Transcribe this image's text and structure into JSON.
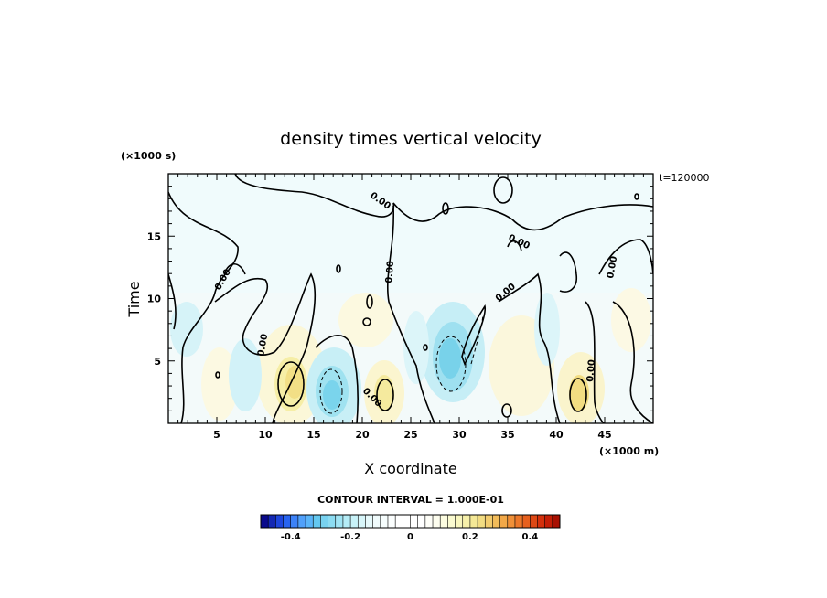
{
  "chart_data": {
    "type": "heatmap",
    "title": "density times vertical velocity",
    "xlabel": "X coordinate",
    "ylabel": "Time",
    "x_unit_label": "(×1000 m)",
    "y_unit_label": "(×1000 s)",
    "time_label": "t=120000",
    "xlim": [
      0,
      50
    ],
    "ylim": [
      0,
      20
    ],
    "x_ticks": [
      5,
      10,
      15,
      20,
      25,
      30,
      35,
      40,
      45
    ],
    "y_ticks": [
      5,
      10,
      15
    ],
    "contour_interval_text": "CONTOUR INTERVAL = 1.000E-01",
    "contour_label": "0.00",
    "colorbar": {
      "min": -0.5,
      "max": 0.5,
      "step": 0.025,
      "tick_values": [
        -0.4,
        -0.2,
        0,
        0.2,
        0.4
      ],
      "tick_labels": [
        "-0.4",
        "-0.2",
        "0",
        "0.2",
        "0.4"
      ],
      "colors": [
        "#0a0a8c",
        "#1428b4",
        "#1e46dc",
        "#2864f0",
        "#3c82f8",
        "#50a0fa",
        "#5ab4f8",
        "#64c8f0",
        "#78d2f0",
        "#8cdcf2",
        "#a0e4f4",
        "#b4ecf6",
        "#c8f2f8",
        "#d8f6fa",
        "#e6f9fb",
        "#f0fbfc",
        "#f6fdfd",
        "#fbfefe",
        "#ffffff",
        "#ffffff",
        "#ffffff",
        "#ffffff",
        "#fefef8",
        "#fdfdee",
        "#fcfce0",
        "#fafad0",
        "#f8f6be",
        "#f6f0aa",
        "#f4e896",
        "#f2dc82",
        "#f2cc6e",
        "#f2bc5a",
        "#f2a848",
        "#f09038",
        "#ec782a",
        "#e6601e",
        "#de4814",
        "#d4300c",
        "#c41e06",
        "#a81002"
      ]
    },
    "note_values": "Field values range approximately -0.3 to 0.3; positive (yellow) and negative (blue) columns in the lower half, near-zero (pale cyan) in upper half."
  }
}
